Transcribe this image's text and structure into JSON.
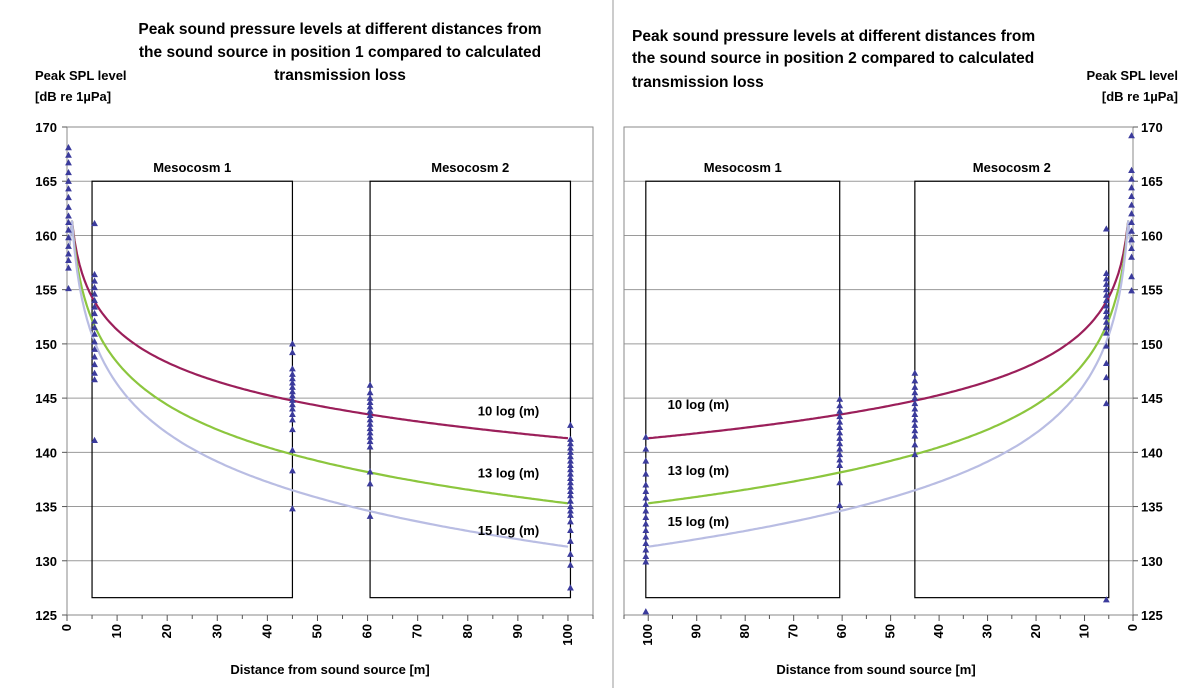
{
  "chart_data": [
    {
      "type": "scatter",
      "title_lines": [
        "Peak sound pressure levels at different distances from",
        "the sound source in position 1 compared to calculated",
        "transmission loss"
      ],
      "ylabel_lines": [
        "Peak SPL level",
        "[dB re 1µPa]"
      ],
      "xlabel": "Distance from sound source [m]",
      "xlim": [
        0,
        105
      ],
      "ylim": [
        125,
        170
      ],
      "x_direction": "normal",
      "y_axis_side": "left",
      "x_ticks": [
        0,
        10,
        20,
        30,
        40,
        50,
        60,
        70,
        80,
        90,
        100
      ],
      "x_tick_labels": [
        "0",
        "10",
        "20",
        "30",
        "40",
        "50",
        "60",
        "70",
        "80",
        "90",
        "100"
      ],
      "y_ticks": [
        125,
        130,
        135,
        140,
        145,
        150,
        155,
        160,
        165,
        170
      ],
      "y_tick_labels": [
        "125",
        "130",
        "135",
        "140",
        "145",
        "150",
        "155",
        "160",
        "165",
        "170"
      ],
      "grid": true,
      "boxes": [
        {
          "label": "Mesocosm 1",
          "x": [
            5,
            45
          ],
          "y": [
            126.6,
            165
          ]
        },
        {
          "label": "Mesocosm 2",
          "x": [
            60.5,
            100.5
          ],
          "y": [
            126.6,
            165
          ]
        }
      ],
      "series": [
        {
          "name": "10 log (m)",
          "type": "line",
          "color": "#9b1f5a",
          "source_level": 161.3,
          "coefficient": 10,
          "x_range": [
            1,
            100
          ]
        },
        {
          "name": "13 log (m)",
          "type": "line",
          "color": "#8cc63e",
          "source_level": 161.3,
          "coefficient": 13,
          "x_range": [
            1,
            100
          ]
        },
        {
          "name": "15 log (m)",
          "type": "line",
          "color": "#b9bde3",
          "source_level": 161.3,
          "coefficient": 15,
          "x_range": [
            1,
            100
          ]
        }
      ],
      "measurement_color": "#3b3b9c",
      "measurements": [
        {
          "x": 0.3,
          "y": [
            168.1,
            167.4,
            166.7,
            165.8,
            165.0,
            164.3,
            163.5,
            162.6,
            161.8,
            161.2,
            160.5,
            159.8,
            159.0,
            158.3,
            157.7,
            157.0,
            155.1
          ]
        },
        {
          "x": 5.5,
          "y": [
            161.1,
            156.4,
            155.8,
            155.2,
            154.6,
            154.0,
            153.4,
            152.8,
            152.1,
            151.5,
            150.9,
            150.2,
            149.5,
            148.8,
            148.1,
            147.3,
            146.7,
            141.1
          ]
        },
        {
          "x": 45,
          "y": [
            150.0,
            149.2,
            147.7,
            147.2,
            146.8,
            146.4,
            146.0,
            145.6,
            145.2,
            144.8,
            144.4,
            144.0,
            143.5,
            143.0,
            142.1,
            140.2,
            138.3,
            134.8
          ]
        },
        {
          "x": 60.5,
          "y": [
            146.2,
            145.5,
            145.0,
            144.6,
            144.2,
            143.8,
            143.4,
            143.0,
            142.6,
            142.2,
            141.8,
            141.4,
            141.0,
            140.5,
            138.2,
            137.1,
            134.1
          ]
        },
        {
          "x": 100.5,
          "y": [
            142.5,
            141.2,
            140.8,
            140.4,
            140.0,
            139.6,
            139.2,
            138.8,
            138.4,
            138.0,
            137.6,
            137.2,
            136.8,
            136.4,
            136.0,
            135.5,
            135.0,
            134.6,
            134.2,
            133.6,
            132.8,
            131.8,
            130.6,
            129.6,
            127.5
          ]
        }
      ],
      "annotations": [
        {
          "text": "10 log (m)",
          "x": 82,
          "y": 143.4
        },
        {
          "text": "13 log (m)",
          "x": 82,
          "y": 137.7
        },
        {
          "text": "15 log (m)",
          "x": 82,
          "y": 132.4
        }
      ]
    },
    {
      "type": "scatter",
      "title_lines": [
        "Peak sound pressure levels at different distances from",
        "the sound source in position 2 compared to calculated",
        "transmission loss"
      ],
      "ylabel_lines": [
        "Peak SPL level",
        "[dB re 1µPa]"
      ],
      "xlabel": "Distance from sound source [m]",
      "xlim": [
        105,
        0
      ],
      "ylim": [
        125,
        170
      ],
      "x_direction": "reversed",
      "y_axis_side": "right",
      "x_ticks": [
        100,
        90,
        80,
        70,
        60,
        50,
        40,
        30,
        20,
        10,
        0
      ],
      "x_tick_labels": [
        "100",
        "90",
        "80",
        "70",
        "60",
        "50",
        "40",
        "30",
        "20",
        "10",
        "0"
      ],
      "y_ticks": [
        125,
        130,
        135,
        140,
        145,
        150,
        155,
        160,
        165,
        170
      ],
      "y_tick_labels": [
        "125",
        "130",
        "135",
        "140",
        "145",
        "150",
        "155",
        "160",
        "165",
        "170"
      ],
      "grid": true,
      "boxes": [
        {
          "label": "Mesocosm 1",
          "x": [
            100.5,
            60.5
          ],
          "y": [
            126.6,
            165
          ]
        },
        {
          "label": "Mesocosm 2",
          "x": [
            45,
            5
          ],
          "y": [
            126.6,
            165
          ]
        }
      ],
      "series": [
        {
          "name": "10 log (m)",
          "type": "line",
          "color": "#9b1f5a",
          "source_level": 161.3,
          "coefficient": 10,
          "x_range": [
            1,
            100
          ]
        },
        {
          "name": "13 log (m)",
          "type": "line",
          "color": "#8cc63e",
          "source_level": 161.3,
          "coefficient": 13,
          "x_range": [
            1,
            100
          ]
        },
        {
          "name": "15 log (m)",
          "type": "line",
          "color": "#b9bde3",
          "source_level": 161.3,
          "coefficient": 15,
          "x_range": [
            1,
            100
          ]
        }
      ],
      "measurement_color": "#3b3b9c",
      "measurements": [
        {
          "x": 100.5,
          "y": [
            141.4,
            140.3,
            139.2,
            138.0,
            137.0,
            136.4,
            135.8,
            135.2,
            134.6,
            134.0,
            133.4,
            132.8,
            132.2,
            131.6,
            131.0,
            130.4,
            129.9,
            125.3
          ]
        },
        {
          "x": 60.5,
          "y": [
            144.9,
            144.3,
            143.8,
            143.3,
            142.8,
            142.3,
            141.8,
            141.3,
            140.8,
            140.3,
            139.8,
            139.3,
            138.8,
            137.2,
            135.1
          ]
        },
        {
          "x": 45,
          "y": [
            147.3,
            146.6,
            146.0,
            145.5,
            145.0,
            144.5,
            144.0,
            143.5,
            143.0,
            142.5,
            142.0,
            141.5,
            140.7,
            139.8
          ]
        },
        {
          "x": 5.5,
          "y": [
            160.6,
            156.5,
            156.0,
            155.5,
            155.0,
            154.5,
            154.0,
            153.5,
            153.0,
            152.5,
            152.0,
            151.5,
            151.0,
            149.8,
            148.2,
            146.9,
            144.5,
            126.4
          ]
        },
        {
          "x": 0.3,
          "y": [
            169.2,
            166.0,
            165.2,
            164.4,
            163.6,
            162.8,
            162.0,
            161.2,
            160.4,
            159.6,
            158.8,
            158.0,
            156.2,
            154.9
          ]
        }
      ],
      "annotations": [
        {
          "text": "10 log (m)",
          "x": 96,
          "y": 144.0
        },
        {
          "text": "13 log (m)",
          "x": 96,
          "y": 137.9
        },
        {
          "text": "15 log (m)",
          "x": 96,
          "y": 133.2
        }
      ]
    }
  ]
}
